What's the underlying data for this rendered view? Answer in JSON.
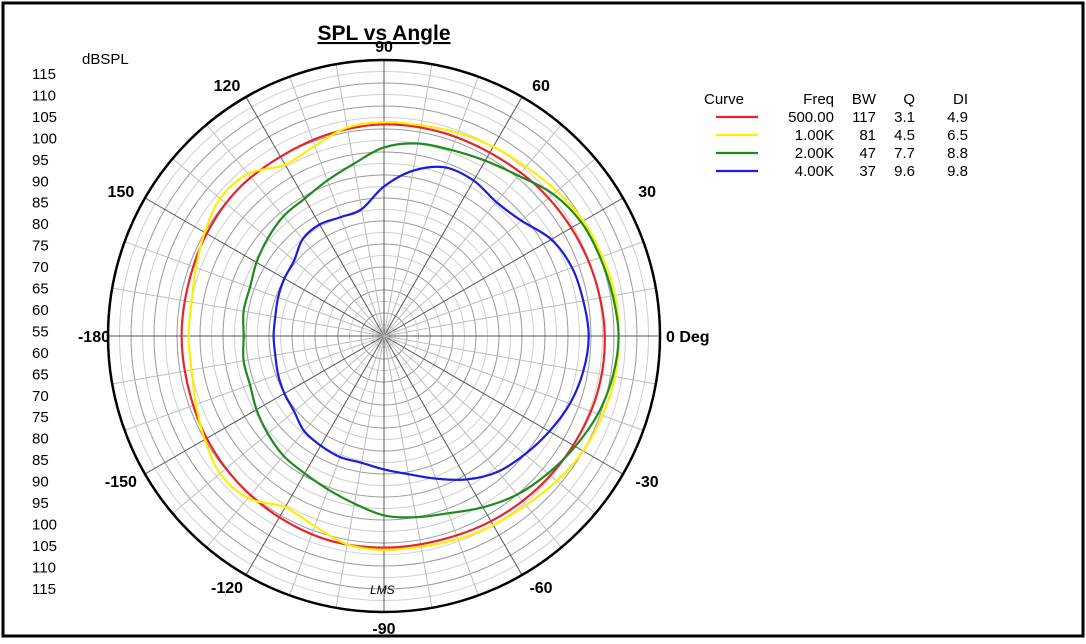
{
  "chart_data": {
    "type": "polar",
    "title": "SPL vs Angle",
    "radial_unit_label": "dBSPL",
    "radial_range": [
      55,
      115
    ],
    "radial_tick_labels": [
      "115",
      "110",
      "105",
      "100",
      "95",
      "90",
      "85",
      "80",
      "75",
      "70",
      "65",
      "60",
      "55",
      "60",
      "65",
      "70",
      "75",
      "80",
      "85",
      "90",
      "95",
      "100",
      "105",
      "110",
      "115"
    ],
    "angle_labels": [
      {
        "angle": 0,
        "text": "0 Deg"
      },
      {
        "angle": 30,
        "text": "30"
      },
      {
        "angle": 60,
        "text": "60"
      },
      {
        "angle": 90,
        "text": "90"
      },
      {
        "angle": 120,
        "text": "120"
      },
      {
        "angle": 150,
        "text": "150"
      },
      {
        "angle": 180,
        "text": "-180"
      },
      {
        "angle": -150,
        "text": "-150"
      },
      {
        "angle": -120,
        "text": "-120"
      },
      {
        "angle": -90,
        "text": "-90"
      },
      {
        "angle": -60,
        "text": "-60"
      },
      {
        "angle": -30,
        "text": "-30"
      }
    ],
    "grid": true,
    "legend_position": "top-right",
    "legend_headers": {
      "curve": "Curve",
      "freq": "Freq",
      "bw": "BW",
      "q": "Q",
      "di": "DI"
    },
    "series": [
      {
        "name": "500.00",
        "freq": "500.00",
        "bw": "117",
        "q": "3.1",
        "di": "4.9",
        "color": "#e8232a",
        "angles": [
          0,
          15,
          30,
          45,
          60,
          75,
          90,
          105,
          120,
          135,
          150,
          165,
          180,
          195,
          210,
          225,
          240,
          255,
          270,
          285,
          300,
          315,
          330,
          345
        ],
        "values": [
          103,
          102.5,
          102,
          101.5,
          101,
          101,
          101,
          100.5,
          100,
          100,
          99.5,
          99,
          99,
          99,
          99.5,
          100,
          100.5,
          101,
          101,
          101,
          101.5,
          102,
          102.5,
          103
        ]
      },
      {
        "name": "1.00K",
        "freq": "1.00K",
        "bw": "81",
        "q": "4.5",
        "di": "6.5",
        "color": "#ffee00",
        "angles": [
          0,
          10,
          20,
          30,
          40,
          50,
          60,
          70,
          80,
          90,
          100,
          110,
          120,
          130,
          140,
          150,
          160,
          170,
          180,
          190,
          200,
          210,
          220,
          230,
          240,
          250,
          260,
          270,
          280,
          290,
          300,
          310,
          320,
          330,
          340,
          350
        ],
        "values": [
          106,
          106,
          105.5,
          105,
          104,
          103,
          102.5,
          102,
          101.5,
          101.5,
          101,
          99,
          98,
          101,
          101.5,
          100,
          98.5,
          97.5,
          97.5,
          97.5,
          98.5,
          100,
          101.5,
          101,
          98,
          99,
          101,
          101.5,
          101.5,
          102,
          102.5,
          103,
          104,
          105,
          105.5,
          106
        ]
      },
      {
        "name": "2.00K",
        "freq": "2.00K",
        "bw": "47",
        "q": "7.7",
        "di": "8.8",
        "color": "#1f8a1f",
        "angles": [
          0,
          10,
          20,
          30,
          40,
          50,
          60,
          70,
          80,
          90,
          100,
          110,
          120,
          130,
          140,
          150,
          160,
          170,
          180,
          190,
          200,
          210,
          220,
          230,
          240,
          250,
          260,
          270,
          280,
          290,
          300,
          310,
          320,
          330,
          340,
          350
        ],
        "values": [
          106,
          105.5,
          105,
          104.5,
          103,
          100.5,
          99,
          98,
          97.5,
          96,
          93,
          91,
          89.5,
          89,
          88,
          87,
          86,
          86,
          85.5,
          86,
          86,
          87,
          88,
          89,
          89.5,
          90.5,
          92,
          94,
          95,
          96,
          98,
          100,
          101.5,
          103,
          104.5,
          105.5
        ]
      },
      {
        "name": "4.00K",
        "freq": "4.00K",
        "bw": "37",
        "q": "9.6",
        "di": "9.8",
        "color": "#1c1ce0",
        "angles": [
          0,
          10,
          20,
          30,
          40,
          50,
          60,
          70,
          80,
          90,
          100,
          110,
          120,
          130,
          140,
          150,
          160,
          170,
          180,
          190,
          200,
          210,
          220,
          230,
          240,
          250,
          260,
          270,
          280,
          290,
          300,
          310,
          320,
          330,
          340,
          350
        ],
        "values": [
          99.5,
          99,
          98.5,
          97,
          94,
          93,
          94,
          94,
          91.5,
          87.5,
          83,
          82.5,
          83,
          82.5,
          80.5,
          80,
          79.5,
          79,
          79,
          79,
          79.5,
          80,
          80.5,
          82,
          82.5,
          83,
          83,
          84,
          85.5,
          88,
          91,
          93.5,
          95,
          96.5,
          98,
          99
        ]
      }
    ],
    "annotation": "LMS"
  }
}
